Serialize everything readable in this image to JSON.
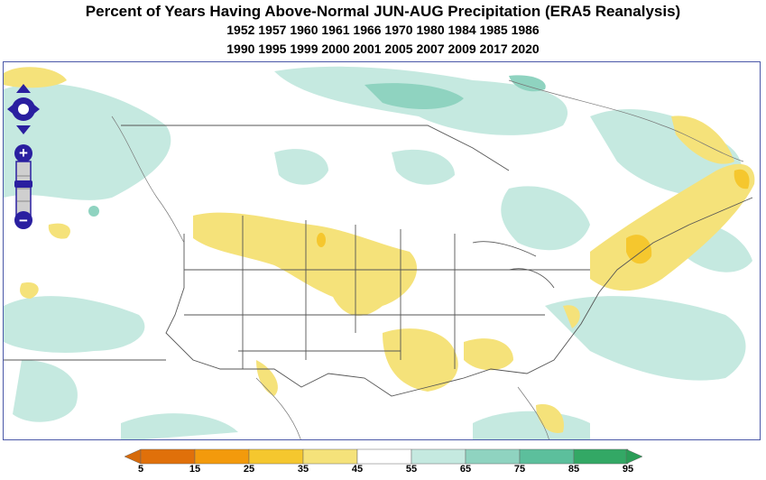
{
  "title": "Percent of Years Having Above-Normal JUN-AUG Precipitation (ERA5 Reanalysis)",
  "subtitle_line1": "1952 1957 1960 1961 1966 1970 1980 1984 1985 1986",
  "subtitle_line2": "1990 1995 1999 2000 2001 2005 2007 2009 2017 2020",
  "map": {
    "controls": {
      "pan": "pan-control",
      "zoom_in": "+",
      "zoom_out": "−"
    }
  },
  "colorbar": {
    "labels": [
      "5",
      "15",
      "25",
      "35",
      "45",
      "55",
      "65",
      "75",
      "85",
      "95"
    ],
    "colors": [
      "#e0700a",
      "#f39a0c",
      "#f5c72e",
      "#f5e27a",
      "#ffffff",
      "#c5e9e0",
      "#8fd3c0",
      "#5cbf9c",
      "#33a865"
    ],
    "left_arrow_color": "#d66a0a",
    "right_arrow_color": "#2a9d57"
  }
}
